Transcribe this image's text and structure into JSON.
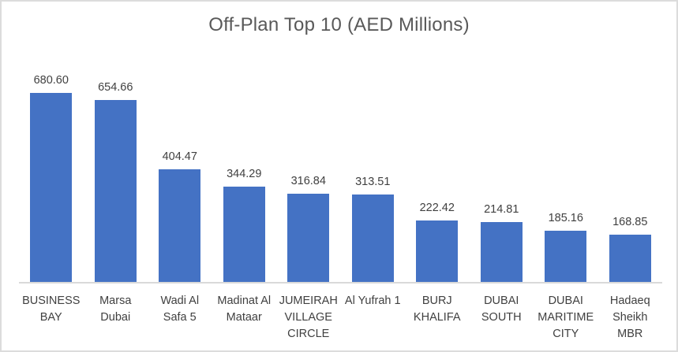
{
  "chart_data": {
    "type": "bar",
    "title": "Off-Plan Top 10 (AED Millions)",
    "categories": [
      "BUSINESS BAY",
      "Marsa Dubai",
      "Wadi Al Safa 5",
      "Madinat Al Mataar",
      "JUMEIRAH VILLAGE CIRCLE",
      "Al Yufrah 1",
      "BURJ KHALIFA",
      "DUBAI SOUTH",
      "DUBAI MARITIME CITY",
      "Hadaeq Sheikh MBR"
    ],
    "category_display": [
      "BUSINESS\nBAY",
      "Marsa\nDubai",
      "Wadi Al\nSafa 5",
      "Madinat Al\nMataar",
      "JUMEIRAH\nVILLAGE\nCIRCLE",
      "Al Yufrah 1",
      "BURJ\nKHALIFA",
      "DUBAI\nSOUTH",
      "DUBAI\nMARITIME\nCITY",
      "Hadaeq\nSheikh\nMBR"
    ],
    "values": [
      680.6,
      654.66,
      404.47,
      344.29,
      316.84,
      313.51,
      222.42,
      214.81,
      185.16,
      168.85
    ],
    "value_labels": [
      "680.60",
      "654.66",
      "404.47",
      "344.29",
      "316.84",
      "313.51",
      "222.42",
      "214.81",
      "185.16",
      "168.85"
    ],
    "xlabel": "",
    "ylabel": "",
    "ylim": [
      0,
      700
    ],
    "grid": false,
    "legend": false,
    "data_labels": true,
    "bar_color": "#4472C4",
    "title_color": "#595959",
    "label_color": "#404040",
    "axis_line_color": "#D9D9D9",
    "background_color": "#FFFFFF",
    "border_color": "#DCDCDC"
  }
}
